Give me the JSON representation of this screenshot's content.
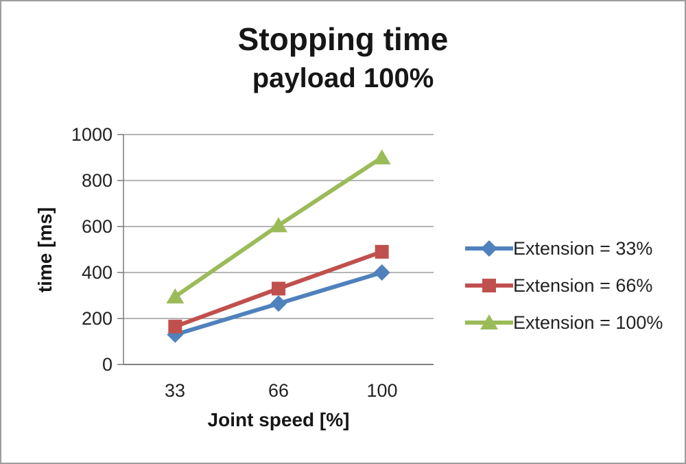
{
  "chart_data": {
    "type": "line",
    "title": "Stopping time",
    "subtitle": "payload 100%",
    "xlabel": "Joint speed [%]",
    "ylabel": "time [ms]",
    "categories": [
      "33",
      "66",
      "100"
    ],
    "x": [
      33,
      66,
      100
    ],
    "yticks": [
      1000,
      800,
      600,
      400,
      200,
      0
    ],
    "ylim": [
      0,
      1000
    ],
    "grid": true,
    "legend_position": "right",
    "series": [
      {
        "name": "Extension = 33%",
        "color": "#4F81BD",
        "marker": "diamond",
        "values": [
          130,
          265,
          400
        ]
      },
      {
        "name": "Extension = 66%",
        "color": "#C0504D",
        "marker": "square",
        "values": [
          165,
          330,
          490
        ]
      },
      {
        "name": "Extension = 100%",
        "color": "#9BBB59",
        "marker": "triangle",
        "values": [
          295,
          605,
          900
        ]
      }
    ],
    "colors": {
      "gridline": "#9c9c9c",
      "axis": "#808080",
      "text": "#1c1c1c"
    }
  }
}
